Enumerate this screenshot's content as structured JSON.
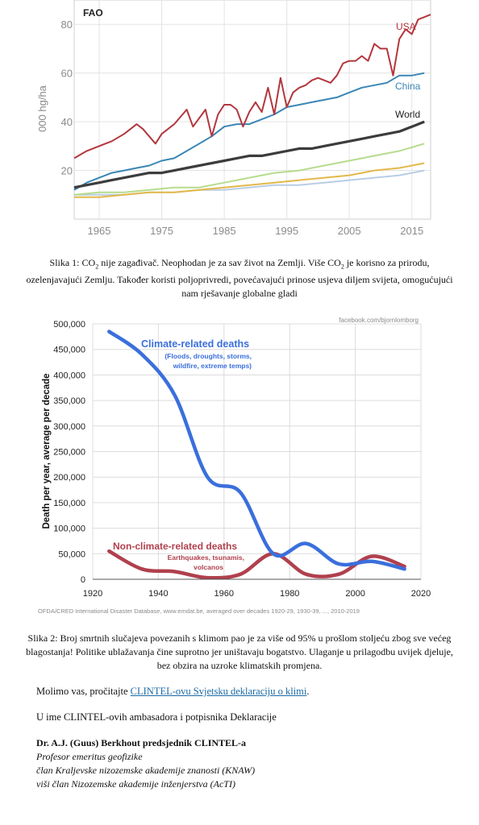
{
  "figure1": {
    "source_label": "FAO",
    "y_unit_label": "000 hg/ha",
    "y_ticks": [
      "20",
      "40",
      "60",
      "80"
    ],
    "x_ticks": [
      "1965",
      "1975",
      "1985",
      "1995",
      "2005",
      "2015"
    ],
    "series_labels": {
      "usa": "USA",
      "china": "China",
      "world": "World"
    },
    "colors": {
      "usa": "#b3373e",
      "china": "#3a86b4",
      "world": "#3c3c3c",
      "green": "#b6dc8c",
      "yellow": "#e3b84a",
      "lightblue": "#b9cde6"
    }
  },
  "caption1": {
    "part1": "Slika 1: CO",
    "sub1": "2",
    "part2": " nije zagađivač. Neophodan je za sav život na Zemlji. Više CO",
    "sub2": "2",
    "part3": " je korisno za prirodu, ozelenjavajući Zemlju. Također koristi poljoprivredi, povećavajući prinose usjeva diljem svijeta, omogućujući nam rješavanje globalne gladi"
  },
  "figure2": {
    "credit": "facebook.com/bjornlomborg",
    "ylabel": "Death per year, average per decade",
    "y_ticks": [
      "0",
      "50,000",
      "100,000",
      "150,000",
      "200,000",
      "250,000",
      "300,000",
      "350,000",
      "400,000",
      "450,000",
      "500,000"
    ],
    "x_ticks": [
      "1920",
      "1940",
      "1960",
      "1980",
      "2000",
      "2020"
    ],
    "climate_title": "Climate-related deaths",
    "climate_sub1": "(Floods, droughts, storms,",
    "climate_sub2": "wildfire, extreme temps)",
    "nonclimate_title": "Non-climate-related deaths",
    "nonclimate_sub1": "Earthquakes, tsunamis,",
    "nonclimate_sub2": "volcanos",
    "source": "OFDA/CRED International Disaster Database, www.emdat.be, averaged over decades 1920-29, 1930-39, ..., 2010-2019",
    "colors": {
      "climate": "#3a6fdc",
      "nonclimate": "#b0404d"
    }
  },
  "caption2": "Slika 2: Broj smrtnih slučajeva povezanih s klimom pao je za više od 95% u prošlom stoljeću zbog sve većeg blagostanja! Politike ublažavanja čine suprotno jer uništavaju bogatstvo. Ulaganje u prilagodbu uvijek djeluje, bez obzira na uzroke klimatskih promjena.",
  "read_request": {
    "prefix": "Molimo vas, pročitajte ",
    "link": "CLINTEL-ovu Svjetsku deklaraciju o klimi",
    "suffix": "."
  },
  "behalf": "U ime CLINTEL-ovih ambasadora i potpisnika Deklaracije",
  "signature": {
    "name": "Dr. A.J. (Guus) Berkhout predsjednik CLINTEL-a",
    "line1": "Profesor emeritus geofizike",
    "line2": "član Kraljevske nizozemske akademije znanosti (KNAW)",
    "line3": "viši član Nizozemske akademije inženjerstva (AcTI)"
  },
  "chart_data": [
    {
      "type": "line",
      "title": "",
      "xlabel": "",
      "ylabel": "000 hg/ha",
      "xlim": [
        1961,
        2018
      ],
      "ylim": [
        0,
        90
      ],
      "grid": true,
      "series": [
        {
          "name": "USA",
          "color": "#b3373e",
          "x": [
            1961,
            1963,
            1965,
            1967,
            1969,
            1971,
            1972,
            1974,
            1975,
            1977,
            1979,
            1980,
            1982,
            1983,
            1984,
            1985,
            1986,
            1987,
            1988,
            1989,
            1990,
            1991,
            1992,
            1993,
            1994,
            1995,
            1996,
            1997,
            1998,
            1999,
            2000,
            2001,
            2002,
            2003,
            2004,
            2005,
            2006,
            2007,
            2008,
            2009,
            2010,
            2011,
            2012,
            2013,
            2014,
            2015,
            2016,
            2017,
            2018
          ],
          "values": [
            25,
            28,
            30,
            32,
            35,
            39,
            37,
            31,
            35,
            39,
            45,
            38,
            45,
            34,
            43,
            47,
            47,
            45,
            38,
            44,
            48,
            44,
            54,
            43,
            58,
            46,
            52,
            54,
            55,
            57,
            58,
            57,
            56,
            59,
            64,
            65,
            65,
            67,
            65,
            72,
            70,
            70,
            59,
            74,
            78,
            76,
            82,
            83,
            84
          ]
        },
        {
          "name": "China",
          "color": "#3a86b4",
          "x": [
            1961,
            1963,
            1965,
            1967,
            1969,
            1971,
            1973,
            1975,
            1977,
            1979,
            1981,
            1983,
            1985,
            1987,
            1989,
            1991,
            1993,
            1995,
            1997,
            1999,
            2001,
            2003,
            2005,
            2007,
            2009,
            2011,
            2013,
            2015,
            2017
          ],
          "values": [
            12,
            15,
            17,
            19,
            20,
            21,
            22,
            24,
            25,
            28,
            31,
            34,
            38,
            39,
            39,
            41,
            43,
            46,
            47,
            48,
            49,
            50,
            52,
            54,
            55,
            56,
            59,
            59,
            60
          ]
        },
        {
          "name": "World",
          "color": "#3c3c3c",
          "x": [
            1961,
            1963,
            1965,
            1967,
            1969,
            1971,
            1973,
            1975,
            1977,
            1979,
            1981,
            1983,
            1985,
            1987,
            1989,
            1991,
            1993,
            1995,
            1997,
            1999,
            2001,
            2003,
            2005,
            2007,
            2009,
            2011,
            2013,
            2015,
            2017
          ],
          "values": [
            13,
            14,
            15,
            16,
            17,
            18,
            19,
            19,
            20,
            21,
            22,
            23,
            24,
            25,
            26,
            26,
            27,
            28,
            29,
            29,
            30,
            31,
            32,
            33,
            34,
            35,
            36,
            38,
            40
          ]
        },
        {
          "color": "#b6dc8c",
          "x": [
            1961,
            1965,
            1969,
            1973,
            1977,
            1981,
            1985,
            1989,
            1993,
            1997,
            2001,
            2005,
            2009,
            2013,
            2017
          ],
          "values": [
            10,
            11,
            11,
            12,
            13,
            13,
            15,
            17,
            19,
            20,
            22,
            24,
            26,
            28,
            31
          ]
        },
        {
          "color": "#e3b84a",
          "x": [
            1961,
            1965,
            1969,
            1973,
            1977,
            1981,
            1985,
            1989,
            1993,
            1997,
            2001,
            2005,
            2009,
            2013,
            2017
          ],
          "values": [
            9,
            9,
            10,
            11,
            11,
            12,
            13,
            14,
            15,
            16,
            17,
            18,
            20,
            21,
            23
          ]
        },
        {
          "color": "#b9cde6",
          "x": [
            1961,
            1965,
            1969,
            1973,
            1977,
            1981,
            1985,
            1989,
            1993,
            1997,
            2001,
            2005,
            2009,
            2013,
            2017
          ],
          "values": [
            10,
            10,
            10,
            11,
            11,
            12,
            12,
            13,
            14,
            14,
            15,
            16,
            17,
            18,
            20
          ]
        }
      ]
    },
    {
      "type": "line",
      "title": "",
      "xlabel": "",
      "ylabel": "Death per year, average per decade",
      "xlim": [
        1920,
        2020
      ],
      "ylim": [
        0,
        500000
      ],
      "grid": true,
      "series": [
        {
          "name": "Climate-related deaths",
          "color": "#3a6fdc",
          "x": [
            1925,
            1935,
            1945,
            1955,
            1965,
            1975,
            1985,
            1995,
            2005,
            2015
          ],
          "values": [
            485000,
            440000,
            360000,
            200000,
            170000,
            50000,
            70000,
            30000,
            35000,
            20000
          ]
        },
        {
          "name": "Non-climate-related deaths",
          "color": "#b0404d",
          "x": [
            1925,
            1935,
            1945,
            1955,
            1965,
            1975,
            1985,
            1995,
            2005,
            2015
          ],
          "values": [
            55000,
            20000,
            15000,
            3000,
            10000,
            50000,
            10000,
            10000,
            45000,
            25000
          ]
        }
      ]
    }
  ]
}
